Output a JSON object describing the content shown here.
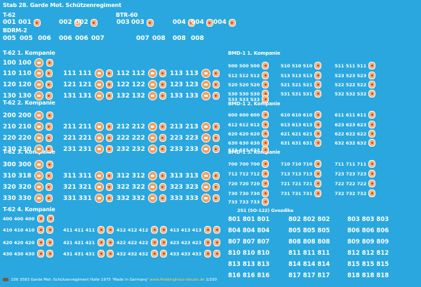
{
  "title": "Stab 28. Garde Mot. Schützenregiment",
  "sections": {
    "t62_label": "T-62",
    "btr60_label": "BTR-60",
    "bdrm2_label": "BDRM-2",
    "k1": "T-62 1. Kompanie",
    "k2": "T-62 2. Kompanie",
    "k3": "T-62 3. Kompanie",
    "k4": "T-62 4. Kompanie",
    "b1": "BMD-1 1. Kompanie",
    "b2": "BMD-1 2. Kompanie",
    "b3": "BMD-1 3. Kompanie",
    "sp": "2S1 (SO-122) Gvozdika"
  },
  "stab_rows": {
    "row1": [
      "001",
      "001",
      "002",
      "002",
      "003",
      "003",
      "004",
      "004",
      "004"
    ],
    "row2": [
      "005",
      "005",
      "006",
      "006",
      "006",
      "007",
      "007",
      "008",
      "008",
      "008"
    ]
  },
  "t62_rows": [
    {
      "top": "100 100",
      "groups": []
    },
    {
      "g": [
        "110 110",
        "111 111",
        "112 112",
        "113 113"
      ]
    },
    {
      "g": [
        "120 120",
        "121 121",
        "122 122",
        "123 123"
      ]
    },
    {
      "g": [
        "130 130",
        "131 131",
        "132 132",
        "133 133"
      ]
    },
    {
      "top": "200 200"
    },
    {
      "g": [
        "210 210",
        "211 211",
        "212 212",
        "213 213"
      ]
    },
    {
      "g": [
        "220 220",
        "221 221",
        "222 222",
        "223 223"
      ]
    },
    {
      "g": [
        "230 230",
        "231 231",
        "232 232",
        "233 233"
      ]
    },
    {
      "top": "300 300"
    },
    {
      "g": [
        "310 318",
        "311 311",
        "312 312",
        "313 313"
      ]
    },
    {
      "g": [
        "320 320",
        "321 321",
        "322 322",
        "323 323"
      ]
    },
    {
      "g": [
        "330 330",
        "331 331",
        "332 332",
        "333 333"
      ]
    },
    {
      "top": "400 400 400"
    },
    {
      "g": [
        "410 410 410",
        "411 411 411",
        "412 412 412",
        "413 413 413"
      ]
    },
    {
      "g": [
        "420 420 420",
        "421 421 421",
        "422 422 422",
        "423 423 423"
      ]
    },
    {
      "g": [
        "430 430 430",
        "431 431 431",
        "432 432 432",
        "433 433 433"
      ]
    }
  ],
  "bmd_rows": [
    [
      "500 500 500",
      "510 510 510",
      "511 511 511"
    ],
    [
      "512 512 512",
      "513 513 513",
      "523 523 523"
    ],
    [
      "520 520 520",
      "521 521 521",
      "522 522 522"
    ],
    [
      "530 530 530",
      "531 531 531",
      "532 532 532"
    ],
    [
      "533 533 533"
    ],
    [
      "600 600 600",
      "610 610 610",
      "611 611 611"
    ],
    [
      "612 612 612",
      "613 613 613",
      "623 623 623"
    ],
    [
      "620 620 620",
      "621 621 621",
      "622 622 622"
    ],
    [
      "630 630 630",
      "631 631 631",
      "632 632 632"
    ],
    [
      "633 633 633"
    ],
    [
      "700 700 700",
      "710 710 710",
      "711 711 711"
    ],
    [
      "712 712 712",
      "713 713 713",
      "723 723 723"
    ],
    [
      "720 720 720",
      "721 721 721",
      "722 722 722"
    ],
    [
      "730 730 730",
      "731 731 731",
      "732 732 732"
    ],
    [
      "733 733 733"
    ]
  ],
  "sp_rows": [
    [
      "801 801 801",
      "802 802 802",
      "803 803 803"
    ],
    [
      "804 804 804",
      "805 805 805",
      "806 806 806"
    ],
    [
      "807 807 807",
      "808 808 808",
      "809 809 809"
    ],
    [
      "810 810 810",
      "811 811 811",
      "812 812 812"
    ],
    [
      "813 813 813",
      "814 814 814",
      "815 815 815"
    ],
    [
      "816 816 816",
      "817 817 817",
      "818 818 818"
    ]
  ],
  "footer": {
    "text": "100 3583 Garde Mot.-Schützenregiment Halle 1975 'Made in Germany'",
    "link": "www.Peddinghaus-decals.de",
    "scale": "1/100"
  }
}
